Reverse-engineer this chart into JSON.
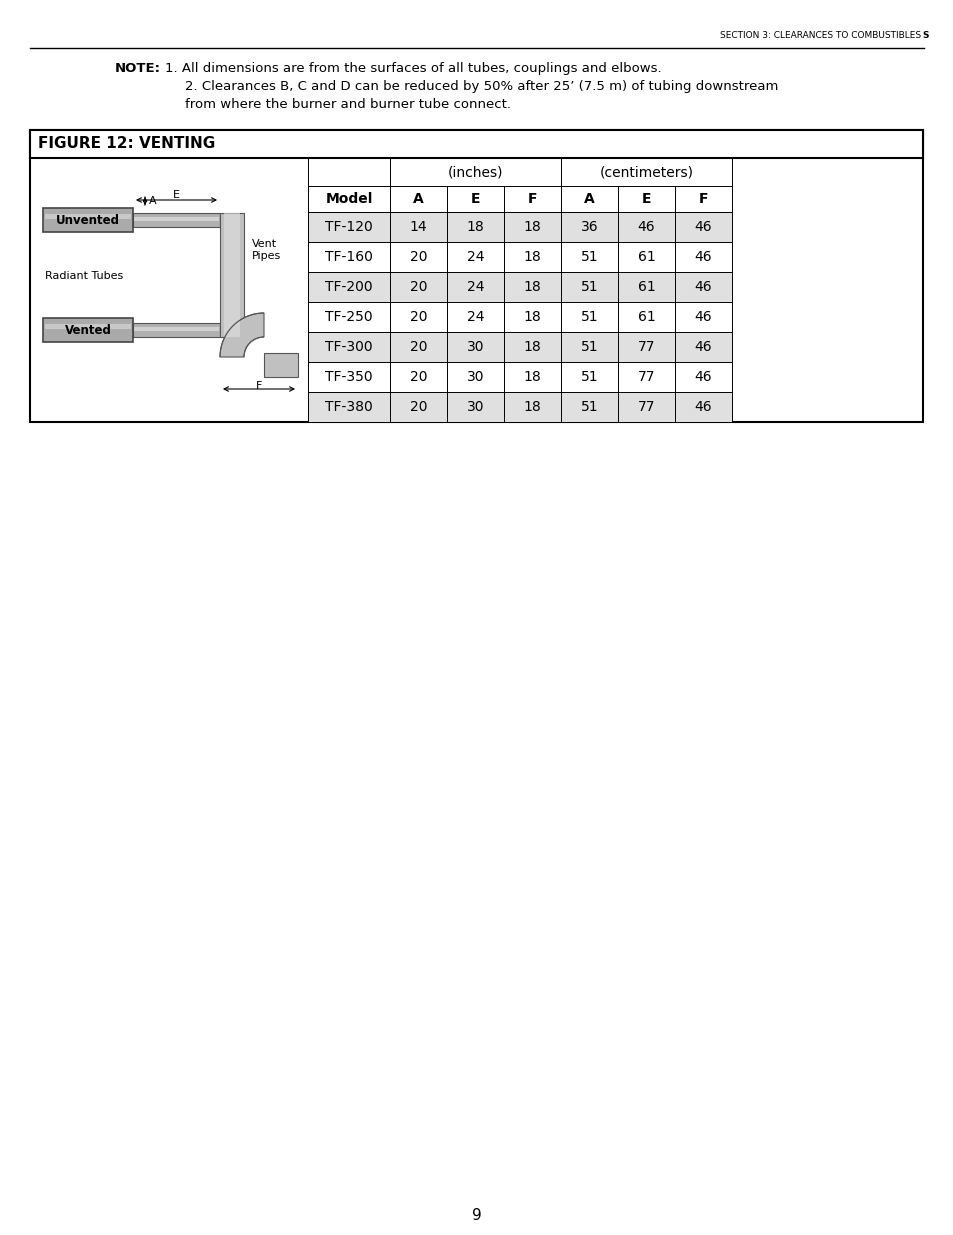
{
  "page_header": "SECTION 3: CLEARANCES TO COMBUSTIBLES",
  "figure_title": "FIGURE 12: VENTING",
  "col_headers_inches": "(inches)",
  "col_headers_cm": "(centimeters)",
  "col_subheaders": [
    "Model",
    "A",
    "E",
    "F",
    "A",
    "E",
    "F"
  ],
  "rows": [
    [
      "TF-120",
      "14",
      "18",
      "18",
      "36",
      "46",
      "46"
    ],
    [
      "TF-160",
      "20",
      "24",
      "18",
      "51",
      "61",
      "46"
    ],
    [
      "TF-200",
      "20",
      "24",
      "18",
      "51",
      "61",
      "46"
    ],
    [
      "TF-250",
      "20",
      "24",
      "18",
      "51",
      "61",
      "46"
    ],
    [
      "TF-300",
      "20",
      "30",
      "18",
      "51",
      "77",
      "46"
    ],
    [
      "TF-350",
      "20",
      "30",
      "18",
      "51",
      "77",
      "46"
    ],
    [
      "TF-380",
      "20",
      "30",
      "18",
      "51",
      "77",
      "46"
    ]
  ],
  "shaded_rows": [
    0,
    2,
    4,
    6
  ],
  "row_shade_color": "#e0e0e0",
  "page_number": "9",
  "background_color": "#ffffff"
}
